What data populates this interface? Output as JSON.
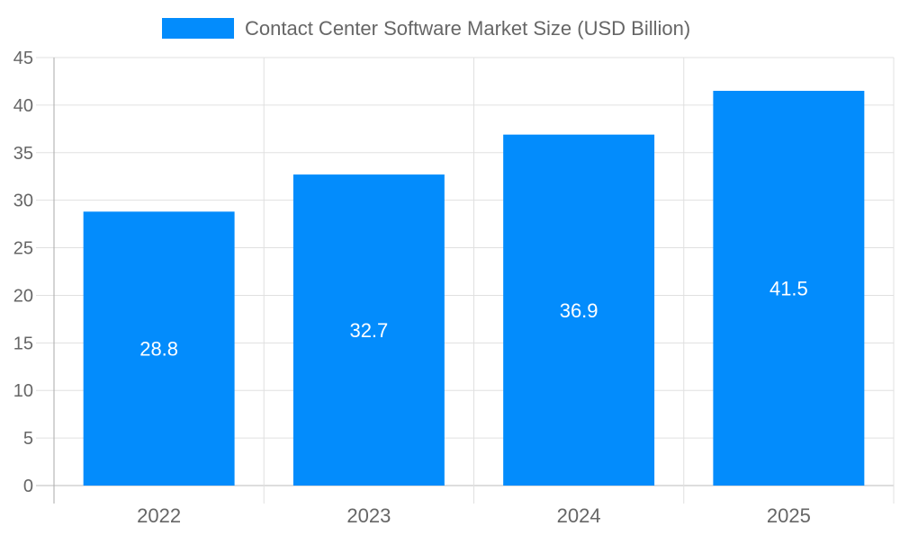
{
  "chart_data": {
    "type": "bar",
    "title": "",
    "xlabel": "",
    "ylabel": "",
    "categories": [
      "2022",
      "2023",
      "2024",
      "2025"
    ],
    "series": [
      {
        "name": "Contact Center Software Market Size (USD Billion)",
        "values": [
          28.8,
          32.7,
          36.9,
          41.5
        ],
        "color": "#038cfc"
      }
    ],
    "data_labels": [
      "28.8",
      "32.7",
      "36.9",
      "41.5"
    ],
    "ylim": [
      0,
      45
    ],
    "yticks": [
      "0",
      "5",
      "10",
      "15",
      "20",
      "25",
      "30",
      "35",
      "40",
      "45"
    ],
    "grid": true,
    "legend_position": "top"
  }
}
